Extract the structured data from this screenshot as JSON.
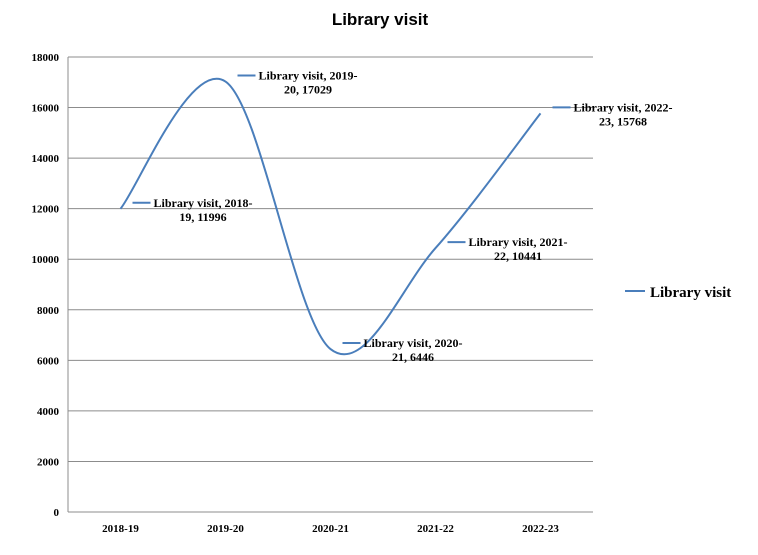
{
  "chart_data": {
    "type": "line",
    "title": "Library visit",
    "categories": [
      "2018-19",
      "2019-20",
      "2020-21",
      "2021-22",
      "2022-23"
    ],
    "series": [
      {
        "name": "Library visit",
        "values": [
          11996,
          17029,
          6446,
          10441,
          15768
        ],
        "color": "#4a7ebb",
        "data_labels": [
          [
            "Library visit, 2018-",
            "19, 11996"
          ],
          [
            "Library visit, 2019-",
            "20, 17029"
          ],
          [
            "Library visit, 2020-",
            "21, 6446"
          ],
          [
            "Library visit, 2021-",
            "22, 10441"
          ],
          [
            "Library visit, 2022-",
            "23, 15768"
          ]
        ]
      }
    ],
    "ylim": [
      0,
      18000
    ],
    "yticks": [
      0,
      2000,
      4000,
      6000,
      8000,
      10000,
      12000,
      14000,
      16000,
      18000
    ],
    "grid": true,
    "smooth": true,
    "legend_position": "right",
    "xlabel": "",
    "ylabel": ""
  }
}
